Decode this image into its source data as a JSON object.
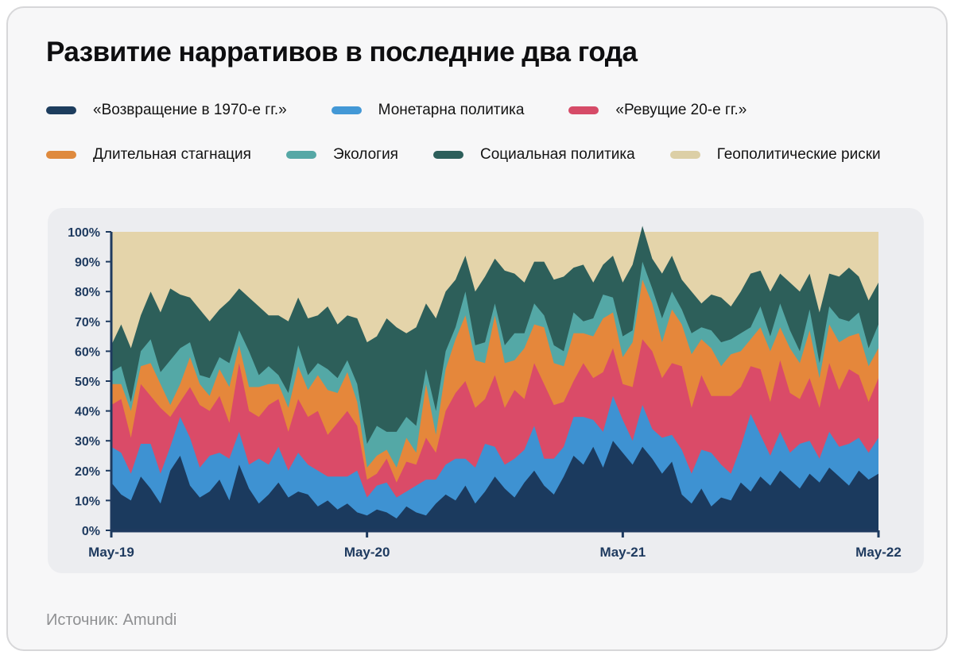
{
  "title": "Развитие нарративов в последние два года",
  "source": "Источник: Amundi",
  "colors": {
    "card_bg": "#f7f7f8",
    "panel_bg": "#ecedf0",
    "axis": "#1e3a5f",
    "title_text": "#0e0e10",
    "source_text": "#8f9092"
  },
  "legend": {
    "rows": [
      [
        {
          "label": "«Возвращение в 1970-е гг.»",
          "color": "#1d3d5e"
        },
        {
          "label": "Монетарна политика",
          "color": "#4398d6"
        },
        {
          "label": "«Ревущие 20-е гг.»",
          "color": "#d64b68"
        }
      ],
      [
        {
          "label": "Длительная стагнация",
          "color": "#df8a3e"
        },
        {
          "label": "Экология",
          "color": "#56a8a6"
        },
        {
          "label": "Социальная политика",
          "color": "#2d5f5b"
        },
        {
          "label": "Геополитические риски",
          "color": "#dccfa6"
        }
      ]
    ]
  },
  "chart_data": {
    "type": "area",
    "variant": "100pct-stacked-area",
    "title": "Развитие нарративов в последние два года",
    "x_range": "May-2019 to May-2022, sampled every 2 weeks (79 points)",
    "ylim": [
      0,
      100
    ],
    "grid": false,
    "legend_position": "above-chart, two rows",
    "yticks": [
      "100%",
      "90%",
      "80%",
      "70%",
      "60%",
      "50%",
      "40%",
      "30%",
      "20%",
      "10%",
      "0%"
    ],
    "xticks": [
      {
        "label": "May-19",
        "pos": 0
      },
      {
        "label": "May-20",
        "pos": 0.3333
      },
      {
        "label": "May-21",
        "pos": 0.6667
      },
      {
        "label": "May-22",
        "pos": 1
      }
    ],
    "stack_order_bottom_to_top": [
      "«Возвращение в 1970-е гг.»",
      "Монетарна политика",
      "«Ревущие 20-е гг.»",
      "Длительная стагнация",
      "Экология",
      "Социальная политика",
      "Геополитические риски"
    ],
    "series": [
      {
        "name": "«Возвращение в 1970-е гг.»",
        "color": "#1b3a5e",
        "values": [
          16,
          12,
          10,
          18,
          14,
          9,
          20,
          25,
          15,
          11,
          13,
          17,
          10,
          22,
          14,
          9,
          12,
          16,
          11,
          13,
          12,
          8,
          10,
          7,
          9,
          6,
          5,
          7,
          6,
          4,
          8,
          6,
          5,
          9,
          12,
          10,
          15,
          9,
          13,
          18,
          14,
          11,
          16,
          20,
          15,
          12,
          18,
          25,
          22,
          28,
          21,
          30,
          26,
          22,
          28,
          24,
          19,
          23,
          12,
          9,
          14,
          8,
          11,
          10,
          16,
          13,
          18,
          15,
          20,
          17,
          14,
          19,
          16,
          21,
          18,
          15,
          20,
          17,
          19
        ]
      },
      {
        "name": "Монетарна политика",
        "color": "#3e92d2",
        "values": [
          12,
          14,
          9,
          11,
          15,
          10,
          8,
          13,
          16,
          10,
          12,
          9,
          14,
          11,
          8,
          15,
          10,
          12,
          9,
          13,
          10,
          12,
          8,
          11,
          9,
          14,
          6,
          8,
          10,
          7,
          5,
          9,
          12,
          8,
          10,
          14,
          9,
          12,
          16,
          10,
          8,
          13,
          11,
          15,
          9,
          12,
          10,
          13,
          16,
          9,
          12,
          15,
          11,
          8,
          14,
          10,
          12,
          9,
          15,
          10,
          13,
          18,
          11,
          9,
          12,
          26,
          14,
          10,
          13,
          9,
          15,
          11,
          8,
          12,
          10,
          14,
          11,
          9,
          12
        ]
      },
      {
        "name": "«Ревущие 20-е гг.»",
        "color": "#da4b68",
        "values": [
          14,
          18,
          12,
          20,
          16,
          22,
          10,
          5,
          17,
          21,
          15,
          19,
          12,
          23,
          18,
          14,
          20,
          16,
          13,
          18,
          16,
          20,
          14,
          18,
          22,
          15,
          6,
          4,
          8,
          5,
          10,
          7,
          14,
          9,
          18,
          22,
          26,
          20,
          15,
          24,
          19,
          23,
          17,
          21,
          25,
          18,
          15,
          12,
          18,
          14,
          20,
          16,
          12,
          18,
          22,
          26,
          20,
          24,
          28,
          22,
          25,
          19,
          23,
          26,
          20,
          16,
          22,
          18,
          24,
          20,
          15,
          21,
          17,
          23,
          19,
          25,
          21,
          17,
          20
        ]
      },
      {
        "name": "Длительная стагнация",
        "color": "#e5873b",
        "values": [
          7,
          5,
          9,
          6,
          11,
          8,
          4,
          6,
          10,
          7,
          5,
          9,
          12,
          6,
          8,
          10,
          7,
          5,
          8,
          11,
          9,
          12,
          15,
          10,
          13,
          8,
          4,
          6,
          3,
          5,
          8,
          4,
          18,
          6,
          14,
          18,
          22,
          16,
          12,
          20,
          15,
          10,
          17,
          13,
          19,
          14,
          12,
          16,
          10,
          14,
          18,
          12,
          9,
          15,
          20,
          16,
          12,
          18,
          14,
          18,
          12,
          16,
          10,
          14,
          12,
          9,
          14,
          17,
          11,
          15,
          12,
          16,
          10,
          13,
          16,
          11,
          14,
          12,
          10
        ]
      },
      {
        "name": "Экология",
        "color": "#54a8a6",
        "values": [
          4,
          6,
          3,
          5,
          8,
          4,
          15,
          12,
          5,
          3,
          6,
          4,
          8,
          5,
          12,
          4,
          6,
          3,
          5,
          7,
          5,
          4,
          7,
          5,
          4,
          6,
          8,
          10,
          6,
          12,
          7,
          9,
          5,
          8,
          6,
          4,
          8,
          5,
          7,
          4,
          6,
          9,
          5,
          7,
          4,
          6,
          5,
          7,
          4,
          6,
          8,
          5,
          7,
          4,
          6,
          5,
          8,
          6,
          5,
          7,
          4,
          6,
          8,
          5,
          6,
          4,
          7,
          5,
          8,
          6,
          4,
          7,
          5,
          6,
          8,
          5,
          7,
          6,
          8
        ]
      },
      {
        "name": "Социальная политика",
        "color": "#2d5f5a",
        "values": [
          9,
          14,
          18,
          12,
          16,
          20,
          24,
          18,
          15,
          22,
          19,
          16,
          21,
          14,
          18,
          23,
          17,
          20,
          24,
          16,
          19,
          16,
          21,
          18,
          15,
          22,
          34,
          30,
          38,
          35,
          28,
          33,
          22,
          31,
          20,
          16,
          12,
          18,
          22,
          15,
          25,
          20,
          17,
          14,
          18,
          22,
          25,
          15,
          19,
          12,
          10,
          14,
          18,
          22,
          12,
          10,
          15,
          12,
          10,
          14,
          8,
          12,
          15,
          11,
          14,
          18,
          12,
          15,
          10,
          16,
          20,
          12,
          17,
          11,
          14,
          18,
          12,
          16,
          14
        ]
      },
      {
        "name": "Геополитические риски",
        "color": "#e4d4aa",
        "values": "remainder_to_100"
      }
    ]
  }
}
